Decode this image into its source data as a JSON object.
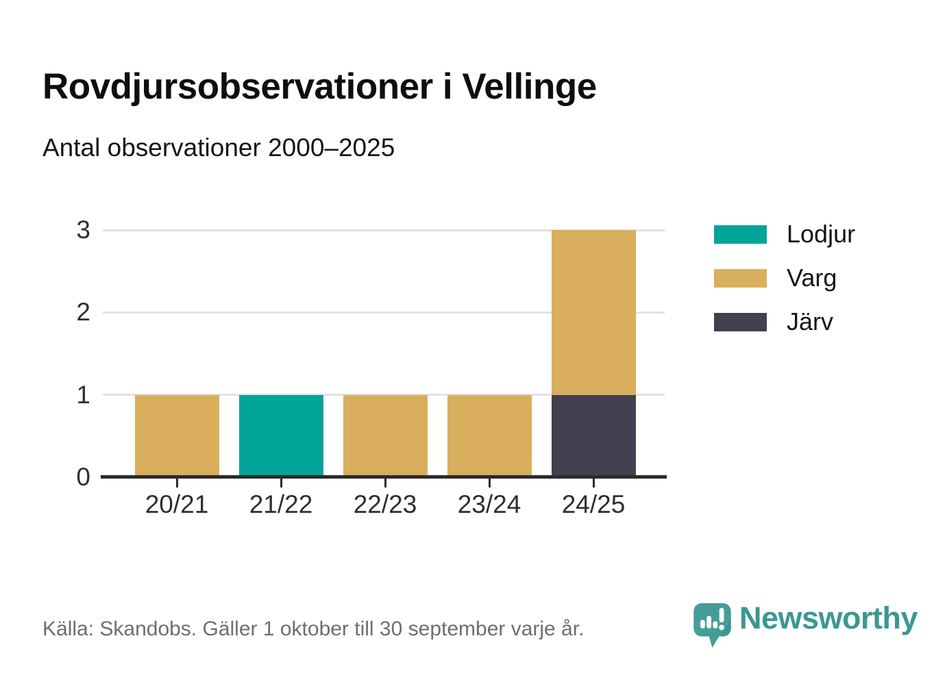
{
  "header": {
    "title": "Rovdjursobservationer i Vellinge",
    "subtitle": "Antal observationer 2000–2025"
  },
  "chart_data": {
    "type": "bar",
    "stacked": true,
    "title": "Rovdjursobservationer i Vellinge",
    "subtitle": "Antal observationer 2000–2025",
    "categories": [
      "20/21",
      "21/22",
      "22/23",
      "23/24",
      "24/25"
    ],
    "series": [
      {
        "name": "Lodjur",
        "color": "#00A499",
        "values": [
          0,
          1,
          0,
          0,
          0
        ]
      },
      {
        "name": "Varg",
        "color": "#D9AE5C",
        "values": [
          1,
          0,
          1,
          1,
          2
        ]
      },
      {
        "name": "Järv",
        "color": "#42404E",
        "values": [
          0,
          0,
          0,
          0,
          1
        ]
      }
    ],
    "totals": [
      1,
      1,
      1,
      1,
      3
    ],
    "xlabel": "",
    "ylabel": "",
    "ylim": [
      0,
      3
    ],
    "yticks": [
      0,
      1,
      2,
      3
    ],
    "grid": true,
    "grid_color": "#E2E2E2",
    "axis_color": "#2B2B2B",
    "tick_label_color": "#2e2e2e",
    "legend_position": "right"
  },
  "footer": {
    "source_text": "Källa: Skandobs. Gäller 1 oktober till 30 september varje år.",
    "brand_name": "Newsworthy",
    "brand_color": "#3A9892",
    "logo_color": "#459D97"
  }
}
